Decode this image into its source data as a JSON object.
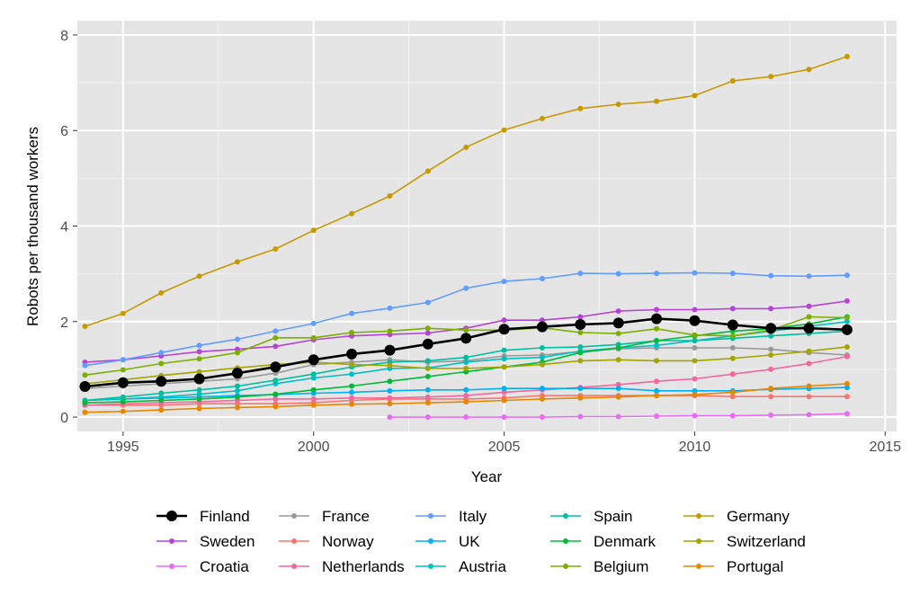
{
  "chart_data": {
    "type": "line",
    "title": "",
    "xlabel": "Year",
    "ylabel": "Robots per thousand workers",
    "xlim": [
      1993.8,
      2015.3
    ],
    "ylim": [
      -0.3,
      8.3
    ],
    "x_ticks": [
      1995,
      2000,
      2005,
      2010,
      2015
    ],
    "y_ticks": [
      0,
      2,
      4,
      6,
      8
    ],
    "x_tick_labels": [
      "1995",
      "2000",
      "2005",
      "2010",
      "2015"
    ],
    "y_tick_labels": [
      "0",
      "2",
      "4",
      "6",
      "8"
    ],
    "grid": true,
    "background": "#e5e5e5",
    "legend_position": "bottom",
    "series": [
      {
        "name": "Finland",
        "color": "#000000",
        "highlight": true,
        "x": [
          1994,
          1995,
          1996,
          1997,
          1998,
          1999,
          2000,
          2001,
          2002,
          2003,
          2004,
          2005,
          2006,
          2007,
          2008,
          2009,
          2010,
          2011,
          2012,
          2013,
          2014
        ],
        "values": [
          0.64,
          0.72,
          0.75,
          0.8,
          0.92,
          1.05,
          1.2,
          1.32,
          1.4,
          1.53,
          1.65,
          1.84,
          1.89,
          1.94,
          1.97,
          2.06,
          2.02,
          1.93,
          1.86,
          1.86,
          1.83
        ]
      },
      {
        "name": "Sweden",
        "color": "#b643d6",
        "x": [
          1994,
          1995,
          1996,
          1997,
          1998,
          1999,
          2000,
          2001,
          2002,
          2003,
          2004,
          2005,
          2006,
          2007,
          2008,
          2009,
          2010,
          2011,
          2012,
          2013,
          2014
        ],
        "values": [
          1.15,
          1.2,
          1.28,
          1.37,
          1.42,
          1.48,
          1.62,
          1.7,
          1.73,
          1.76,
          1.86,
          2.03,
          2.03,
          2.1,
          2.22,
          2.25,
          2.25,
          2.27,
          2.27,
          2.32,
          2.43
        ]
      },
      {
        "name": "Croatia",
        "color": "#e76bf3",
        "x": [
          2002,
          2003,
          2004,
          2005,
          2006,
          2007,
          2008,
          2009,
          2010,
          2011,
          2012,
          2013,
          2014
        ],
        "values": [
          0.0,
          0.0,
          0.0,
          0.0,
          0.0,
          0.01,
          0.01,
          0.02,
          0.03,
          0.03,
          0.04,
          0.05,
          0.07
        ]
      },
      {
        "name": "France",
        "color": "#999999",
        "x": [
          1994,
          1995,
          1996,
          1997,
          1998,
          1999,
          2000,
          2001,
          2002,
          2003,
          2004,
          2005,
          2006,
          2007,
          2008,
          2009,
          2010,
          2011,
          2012,
          2013,
          2014
        ],
        "values": [
          0.6,
          0.65,
          0.7,
          0.75,
          0.8,
          0.92,
          1.1,
          1.15,
          1.2,
          1.15,
          1.18,
          1.28,
          1.3,
          1.37,
          1.43,
          1.45,
          1.45,
          1.45,
          1.42,
          1.35,
          1.3
        ]
      },
      {
        "name": "Norway",
        "color": "#f8766d",
        "x": [
          1994,
          1995,
          1996,
          1997,
          1998,
          1999,
          2000,
          2001,
          2002,
          2003,
          2004,
          2005,
          2006,
          2007,
          2008,
          2009,
          2010,
          2011,
          2012,
          2013,
          2014
        ],
        "values": [
          0.25,
          0.25,
          0.25,
          0.28,
          0.28,
          0.28,
          0.3,
          0.35,
          0.38,
          0.38,
          0.38,
          0.4,
          0.45,
          0.45,
          0.45,
          0.45,
          0.45,
          0.43,
          0.43,
          0.43,
          0.43
        ]
      },
      {
        "name": "Netherlands",
        "color": "#f2679c",
        "x": [
          1994,
          1995,
          1996,
          1997,
          1998,
          1999,
          2000,
          2001,
          2002,
          2003,
          2004,
          2005,
          2006,
          2007,
          2008,
          2009,
          2010,
          2011,
          2012,
          2013,
          2014
        ],
        "values": [
          0.25,
          0.28,
          0.3,
          0.32,
          0.35,
          0.38,
          0.38,
          0.4,
          0.4,
          0.42,
          0.45,
          0.52,
          0.57,
          0.62,
          0.68,
          0.75,
          0.8,
          0.9,
          1.0,
          1.12,
          1.27
        ]
      },
      {
        "name": "Italy",
        "color": "#619cff",
        "x": [
          1994,
          1995,
          1996,
          1997,
          1998,
          1999,
          2000,
          2001,
          2002,
          2003,
          2004,
          2005,
          2006,
          2007,
          2008,
          2009,
          2010,
          2011,
          2012,
          2013,
          2014
        ],
        "values": [
          1.08,
          1.2,
          1.35,
          1.5,
          1.63,
          1.8,
          1.96,
          2.17,
          2.28,
          2.4,
          2.7,
          2.84,
          2.9,
          3.01,
          3.0,
          3.01,
          3.02,
          3.01,
          2.96,
          2.95,
          2.97
        ]
      },
      {
        "name": "UK",
        "color": "#00b0f6",
        "x": [
          1994,
          1995,
          1996,
          1997,
          1998,
          1999,
          2000,
          2001,
          2002,
          2003,
          2004,
          2005,
          2006,
          2007,
          2008,
          2009,
          2010,
          2011,
          2012,
          2013,
          2014
        ],
        "values": [
          0.35,
          0.38,
          0.4,
          0.42,
          0.45,
          0.47,
          0.5,
          0.52,
          0.55,
          0.57,
          0.57,
          0.6,
          0.6,
          0.6,
          0.6,
          0.55,
          0.55,
          0.55,
          0.58,
          0.6,
          0.62
        ]
      },
      {
        "name": "Austria",
        "color": "#00bfc4",
        "x": [
          1994,
          1995,
          1996,
          1997,
          1998,
          1999,
          2000,
          2001,
          2002,
          2003,
          2004,
          2005,
          2006,
          2007,
          2008,
          2009,
          2010,
          2011,
          2012,
          2013,
          2014
        ],
        "values": [
          0.35,
          0.38,
          0.42,
          0.48,
          0.55,
          0.7,
          0.82,
          0.9,
          1.02,
          1.03,
          1.15,
          1.22,
          1.25,
          1.38,
          1.45,
          1.5,
          1.6,
          1.7,
          1.8,
          1.9,
          2.0
        ]
      },
      {
        "name": "Spain",
        "color": "#00bfa0",
        "x": [
          1994,
          1995,
          1996,
          1997,
          1998,
          1999,
          2000,
          2001,
          2002,
          2003,
          2004,
          2005,
          2006,
          2007,
          2008,
          2009,
          2010,
          2011,
          2012,
          2013,
          2014
        ],
        "values": [
          0.35,
          0.42,
          0.5,
          0.57,
          0.65,
          0.77,
          0.9,
          1.05,
          1.15,
          1.18,
          1.25,
          1.4,
          1.45,
          1.47,
          1.52,
          1.6,
          1.6,
          1.65,
          1.7,
          1.75,
          1.8
        ]
      },
      {
        "name": "Denmark",
        "color": "#00ba38",
        "x": [
          1994,
          1995,
          1996,
          1997,
          1998,
          1999,
          2000,
          2001,
          2002,
          2003,
          2004,
          2005,
          2006,
          2007,
          2008,
          2009,
          2010,
          2011,
          2012,
          2013,
          2014
        ],
        "values": [
          0.3,
          0.32,
          0.35,
          0.38,
          0.42,
          0.48,
          0.57,
          0.65,
          0.75,
          0.85,
          0.95,
          1.05,
          1.15,
          1.35,
          1.45,
          1.6,
          1.7,
          1.8,
          1.85,
          1.95,
          2.1
        ]
      },
      {
        "name": "Belgium",
        "color": "#7cae00",
        "x": [
          1994,
          1995,
          1996,
          1997,
          1998,
          1999,
          2000,
          2001,
          2002,
          2003,
          2004,
          2005,
          2006,
          2007,
          2008,
          2009,
          2010,
          2011,
          2012,
          2013,
          2014
        ],
        "values": [
          0.88,
          0.99,
          1.12,
          1.22,
          1.35,
          1.66,
          1.66,
          1.77,
          1.8,
          1.86,
          1.82,
          1.82,
          1.87,
          1.77,
          1.75,
          1.85,
          1.72,
          1.7,
          1.82,
          2.1,
          2.08
        ]
      },
      {
        "name": "Germany",
        "color": "#c49a00",
        "x": [
          1994,
          1995,
          1996,
          1997,
          1998,
          1999,
          2000,
          2001,
          2002,
          2003,
          2004,
          2005,
          2006,
          2007,
          2008,
          2009,
          2010,
          2011,
          2012,
          2013,
          2014
        ],
        "values": [
          1.9,
          2.17,
          2.6,
          2.95,
          3.25,
          3.52,
          3.91,
          4.26,
          4.63,
          5.15,
          5.65,
          6.01,
          6.25,
          6.46,
          6.55,
          6.61,
          6.73,
          7.04,
          7.13,
          7.28,
          7.55
        ]
      },
      {
        "name": "Switzerland",
        "color": "#a3a500",
        "x": [
          1994,
          1995,
          1996,
          1997,
          1998,
          1999,
          2000,
          2001,
          2002,
          2003,
          2004,
          2005,
          2006,
          2007,
          2008,
          2009,
          2010,
          2011,
          2012,
          2013,
          2014
        ],
        "values": [
          0.7,
          0.78,
          0.87,
          0.95,
          1.03,
          1.1,
          1.15,
          1.1,
          1.08,
          1.02,
          1.02,
          1.05,
          1.1,
          1.18,
          1.2,
          1.18,
          1.18,
          1.23,
          1.3,
          1.38,
          1.47
        ]
      },
      {
        "name": "Portugal",
        "color": "#e58700",
        "x": [
          1994,
          1995,
          1996,
          1997,
          1998,
          1999,
          2000,
          2001,
          2002,
          2003,
          2004,
          2005,
          2006,
          2007,
          2008,
          2009,
          2010,
          2011,
          2012,
          2013,
          2014
        ],
        "values": [
          0.1,
          0.12,
          0.15,
          0.18,
          0.2,
          0.22,
          0.25,
          0.27,
          0.28,
          0.3,
          0.32,
          0.35,
          0.38,
          0.4,
          0.42,
          0.45,
          0.47,
          0.52,
          0.6,
          0.65,
          0.7
        ]
      }
    ],
    "legend_columns": [
      [
        "Finland",
        "Sweden",
        "Croatia"
      ],
      [
        "France",
        "Norway",
        "Netherlands"
      ],
      [
        "Italy",
        "UK",
        "Austria"
      ],
      [
        "Spain",
        "Denmark",
        "Belgium"
      ],
      [
        "Germany",
        "Switzerland",
        "Portugal"
      ]
    ]
  }
}
